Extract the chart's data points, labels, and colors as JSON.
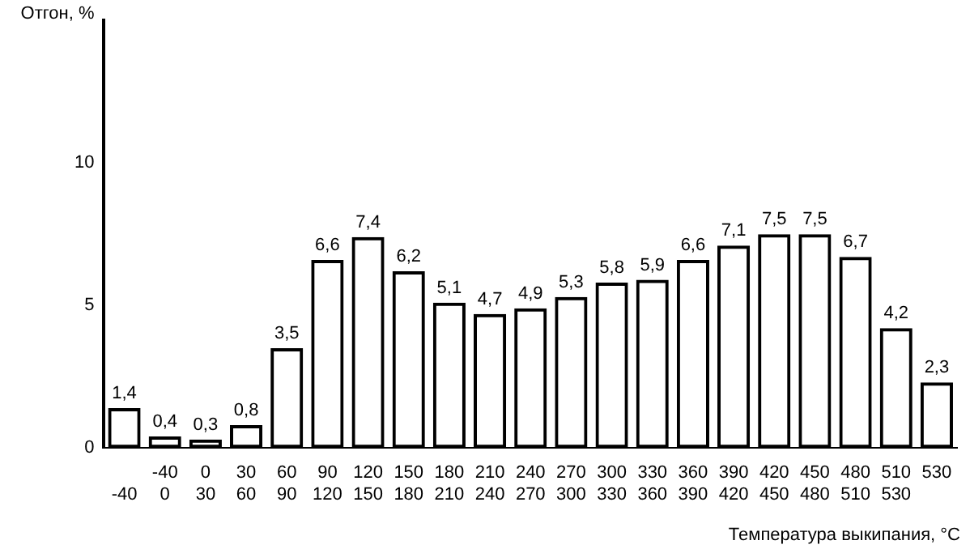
{
  "chart_data": {
    "type": "bar",
    "xlabel": "Температура выкипания, °C",
    "ylabel": "Отгон, %",
    "categories": [
      "\n-40",
      "-40\n0",
      "0\n30",
      "30\n60",
      "60\n90",
      "90\n120",
      "120\n150",
      "150\n180",
      "180\n210",
      "210\n240",
      "240\n270",
      "270\n300",
      "300\n330",
      "330\n360",
      "360\n390",
      "390\n420",
      "420\n450",
      "450\n480",
      "480\n510",
      "510\n530",
      "530\n"
    ],
    "values": [
      1.4,
      0.4,
      0.3,
      0.8,
      3.5,
      6.6,
      7.4,
      6.2,
      5.1,
      4.7,
      4.9,
      5.3,
      5.8,
      5.9,
      6.6,
      7.1,
      7.5,
      7.5,
      6.7,
      4.2,
      2.3
    ],
    "value_labels": [
      "1,4",
      "0,4",
      "0,3",
      "0,8",
      "3,5",
      "6,6",
      "7,4",
      "6,2",
      "5,1",
      "4,7",
      "4,9",
      "5,3",
      "5,8",
      "5,9",
      "6,6",
      "7,1",
      "7,5",
      "7,5",
      "6,7",
      "4,2",
      "2,3"
    ],
    "color": "#000000",
    "ylim": [
      0,
      15
    ],
    "yticks": [
      0,
      5,
      10
    ],
    "grid": false,
    "legend": false
  }
}
